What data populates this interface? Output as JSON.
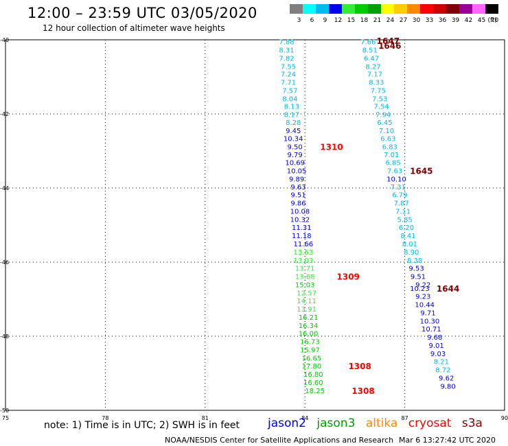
{
  "header": {
    "title": "12:00 – 23:59 UTC 03/05/2020",
    "subtitle": "12 hour collection of altimeter wave heights"
  },
  "colorbar": {
    "unit_label": "(ft)",
    "bins": [
      {
        "label": "3",
        "color": "#7f7f7f"
      },
      {
        "label": "6",
        "color": "#00ffff"
      },
      {
        "label": "9",
        "color": "#00bbee"
      },
      {
        "label": "12",
        "color": "#0000ee"
      },
      {
        "label": "15",
        "color": "#33ee33"
      },
      {
        "label": "18",
        "color": "#00cc00"
      },
      {
        "label": "21",
        "color": "#00a000"
      },
      {
        "label": "24",
        "color": "#ffff00"
      },
      {
        "label": "27",
        "color": "#ffcc00"
      },
      {
        "label": "30",
        "color": "#ff8800"
      },
      {
        "label": "33",
        "color": "#ff0000"
      },
      {
        "label": "36",
        "color": "#cc0000"
      },
      {
        "label": "39",
        "color": "#800000"
      },
      {
        "label": "42",
        "color": "#990099"
      },
      {
        "label": "45",
        "color": "#ff66ff"
      },
      {
        "label": "70",
        "color": "#000000"
      }
    ]
  },
  "map": {
    "lon_range": [
      75,
      90
    ],
    "lat_range": [
      -50,
      -40
    ],
    "lon_ticks": [
      {
        "value": 75,
        "label": "75"
      },
      {
        "value": 78,
        "label": "78"
      },
      {
        "value": 81,
        "label": "81"
      },
      {
        "value": 84,
        "label": "84"
      },
      {
        "value": 87,
        "label": "87"
      },
      {
        "value": 90,
        "label": "90"
      }
    ],
    "lat_ticks": [
      {
        "value": -40,
        "label": "-40"
      },
      {
        "value": -42,
        "label": "-42"
      },
      {
        "value": -44,
        "label": "-44"
      },
      {
        "value": -46,
        "label": "-46"
      },
      {
        "value": -48,
        "label": "-48"
      },
      {
        "value": -50,
        "label": "-50"
      }
    ],
    "tracks": [
      {
        "points": [
          {
            "lon": 83.45,
            "lat": -40.05,
            "text": "7.88",
            "color": "#00bbee"
          },
          {
            "lon": 83.45,
            "lat": -40.27,
            "text": "8.31",
            "color": "#00bbee"
          },
          {
            "lon": 83.45,
            "lat": -40.49,
            "text": "7.82",
            "color": "#00bbee"
          },
          {
            "lon": 83.5,
            "lat": -40.71,
            "text": "7.55",
            "color": "#00bbee"
          },
          {
            "lon": 83.5,
            "lat": -40.92,
            "text": "7.24",
            "color": "#00bbee"
          },
          {
            "lon": 83.5,
            "lat": -41.14,
            "text": "7.71",
            "color": "#00bbee"
          },
          {
            "lon": 83.55,
            "lat": -41.36,
            "text": "7.57",
            "color": "#00bbee"
          },
          {
            "lon": 83.55,
            "lat": -41.58,
            "text": "8.04",
            "color": "#00bbee"
          },
          {
            "lon": 83.6,
            "lat": -41.79,
            "text": "8.13",
            "color": "#00bbee"
          },
          {
            "lon": 83.6,
            "lat": -42.01,
            "text": "8.17",
            "color": "#00bbee"
          },
          {
            "lon": 83.65,
            "lat": -42.22,
            "text": "8.28",
            "color": "#00bbee"
          },
          {
            "lon": 83.65,
            "lat": -42.44,
            "text": "9.45",
            "color": "#0000ee"
          },
          {
            "lon": 83.65,
            "lat": -42.66,
            "text": "10.34",
            "color": "#0000ee"
          },
          {
            "lon": 83.7,
            "lat": -42.88,
            "text": "9.50",
            "color": "#0000ee"
          },
          {
            "lon": 83.7,
            "lat": -43.09,
            "text": "9.79",
            "color": "#0000ee"
          },
          {
            "lon": 83.7,
            "lat": -43.31,
            "text": "10.69",
            "color": "#0000ee"
          },
          {
            "lon": 83.75,
            "lat": -43.53,
            "text": "10.05",
            "color": "#0000ee"
          },
          {
            "lon": 83.75,
            "lat": -43.75,
            "text": "9.89",
            "color": "#0000ee"
          },
          {
            "lon": 83.8,
            "lat": -43.96,
            "text": "9.63",
            "color": "#0000ee"
          },
          {
            "lon": 83.8,
            "lat": -44.18,
            "text": "9.51",
            "color": "#0000ee"
          },
          {
            "lon": 83.8,
            "lat": -44.4,
            "text": "9.86",
            "color": "#0000ee"
          },
          {
            "lon": 83.85,
            "lat": -44.62,
            "text": "10.08",
            "color": "#0000ee"
          },
          {
            "lon": 83.85,
            "lat": -44.84,
            "text": "10.32",
            "color": "#0000ee"
          },
          {
            "lon": 83.9,
            "lat": -45.06,
            "text": "11.31",
            "color": "#0000ee"
          },
          {
            "lon": 83.9,
            "lat": -45.28,
            "text": "11.18",
            "color": "#0000ee"
          },
          {
            "lon": 83.95,
            "lat": -45.5,
            "text": "11.66",
            "color": "#0000ee"
          },
          {
            "lon": 83.95,
            "lat": -45.72,
            "text": "13.63",
            "color": "#33ee33"
          },
          {
            "lon": 83.95,
            "lat": -45.94,
            "text": "13.03",
            "color": "#33ee33"
          },
          {
            "lon": 84.0,
            "lat": -46.16,
            "text": "13.71",
            "color": "#33ee33"
          },
          {
            "lon": 84.0,
            "lat": -46.38,
            "text": "13.68",
            "color": "#33ee33"
          },
          {
            "lon": 84.0,
            "lat": -46.6,
            "text": "15.03",
            "color": "#00cc00"
          },
          {
            "lon": 84.05,
            "lat": -46.82,
            "text": "12.57",
            "color": "#33ee33"
          },
          {
            "lon": 84.05,
            "lat": -47.04,
            "text": "14.11",
            "color": "#33ee33"
          },
          {
            "lon": 84.05,
            "lat": -47.26,
            "text": "13.91",
            "color": "#33ee33"
          },
          {
            "lon": 84.1,
            "lat": -47.48,
            "text": "16.21",
            "color": "#00cc00"
          },
          {
            "lon": 84.1,
            "lat": -47.7,
            "text": "16.34",
            "color": "#00cc00"
          },
          {
            "lon": 84.1,
            "lat": -47.92,
            "text": "16.00",
            "color": "#00cc00"
          },
          {
            "lon": 84.15,
            "lat": -48.14,
            "text": "16.73",
            "color": "#00cc00"
          },
          {
            "lon": 84.15,
            "lat": -48.36,
            "text": "15.97",
            "color": "#00cc00"
          },
          {
            "lon": 84.2,
            "lat": -48.58,
            "text": "16.65",
            "color": "#00cc00"
          },
          {
            "lon": 84.2,
            "lat": -48.8,
            "text": "17.80",
            "color": "#00cc00"
          },
          {
            "lon": 84.25,
            "lat": -49.02,
            "text": "16.80",
            "color": "#00cc00"
          },
          {
            "lon": 84.25,
            "lat": -49.24,
            "text": "16.60",
            "color": "#00cc00"
          },
          {
            "lon": 84.3,
            "lat": -49.46,
            "text": "18.25",
            "color": "#00cc00"
          }
        ]
      },
      {
        "points": [
          {
            "lon": 85.9,
            "lat": -40.05,
            "text": "7.66",
            "color": "#00bbee"
          },
          {
            "lon": 85.95,
            "lat": -40.27,
            "text": "8.51",
            "color": "#00bbee"
          },
          {
            "lon": 86.0,
            "lat": -40.49,
            "text": "6.47",
            "color": "#00bbee"
          },
          {
            "lon": 86.05,
            "lat": -40.71,
            "text": "8.27",
            "color": "#00bbee"
          },
          {
            "lon": 86.1,
            "lat": -40.92,
            "text": "7.17",
            "color": "#00bbee"
          },
          {
            "lon": 86.15,
            "lat": -41.14,
            "text": "8.33",
            "color": "#00bbee"
          },
          {
            "lon": 86.2,
            "lat": -41.36,
            "text": "7.75",
            "color": "#00bbee"
          },
          {
            "lon": 86.25,
            "lat": -41.58,
            "text": "7.53",
            "color": "#00bbee"
          },
          {
            "lon": 86.3,
            "lat": -41.79,
            "text": "7.54",
            "color": "#00bbee"
          },
          {
            "lon": 86.35,
            "lat": -42.01,
            "text": "7.94",
            "color": "#00bbee"
          },
          {
            "lon": 86.4,
            "lat": -42.22,
            "text": "6.45",
            "color": "#00bbee"
          },
          {
            "lon": 86.45,
            "lat": -42.44,
            "text": "7.10",
            "color": "#00bbee"
          },
          {
            "lon": 86.5,
            "lat": -42.66,
            "text": "6.63",
            "color": "#00bbee"
          },
          {
            "lon": 86.55,
            "lat": -42.88,
            "text": "6.83",
            "color": "#00bbee"
          },
          {
            "lon": 86.6,
            "lat": -43.09,
            "text": "7.01",
            "color": "#00bbee"
          },
          {
            "lon": 86.65,
            "lat": -43.31,
            "text": "6.85",
            "color": "#00bbee"
          },
          {
            "lon": 86.7,
            "lat": -43.53,
            "text": "7.63",
            "color": "#00bbee"
          },
          {
            "lon": 86.75,
            "lat": -43.75,
            "text": "10.10",
            "color": "#0000ee"
          },
          {
            "lon": 86.8,
            "lat": -43.96,
            "text": "7.31",
            "color": "#00bbee"
          },
          {
            "lon": 86.85,
            "lat": -44.18,
            "text": "6.79",
            "color": "#00bbee"
          },
          {
            "lon": 86.9,
            "lat": -44.4,
            "text": "7.87",
            "color": "#00bbee"
          },
          {
            "lon": 86.95,
            "lat": -44.62,
            "text": "7.11",
            "color": "#00bbee"
          },
          {
            "lon": 87.0,
            "lat": -44.84,
            "text": "5.85",
            "color": "#00bbee"
          },
          {
            "lon": 87.05,
            "lat": -45.06,
            "text": "6.20",
            "color": "#00bbee"
          },
          {
            "lon": 87.1,
            "lat": -45.28,
            "text": "8.41",
            "color": "#00bbee"
          },
          {
            "lon": 87.15,
            "lat": -45.5,
            "text": "8.01",
            "color": "#00bbee"
          },
          {
            "lon": 87.2,
            "lat": -45.72,
            "text": "8.90",
            "color": "#00bbee"
          },
          {
            "lon": 87.3,
            "lat": -45.94,
            "text": "8.38",
            "color": "#00bbee"
          },
          {
            "lon": 87.35,
            "lat": -46.16,
            "text": "9.53",
            "color": "#0000ee"
          },
          {
            "lon": 87.4,
            "lat": -46.38,
            "text": "9.51",
            "color": "#0000ee"
          },
          {
            "lon": 87.55,
            "lat": -46.6,
            "text": "9.22",
            "color": "#0000ee"
          },
          {
            "lon": 87.45,
            "lat": -46.7,
            "text": "10.23",
            "color": "#0000ee"
          },
          {
            "lon": 87.55,
            "lat": -46.92,
            "text": "9.23",
            "color": "#0000ee"
          },
          {
            "lon": 87.6,
            "lat": -47.14,
            "text": "10.44",
            "color": "#0000ee"
          },
          {
            "lon": 87.7,
            "lat": -47.36,
            "text": "9.71",
            "color": "#0000ee"
          },
          {
            "lon": 87.75,
            "lat": -47.58,
            "text": "10.30",
            "color": "#0000ee"
          },
          {
            "lon": 87.8,
            "lat": -47.8,
            "text": "10.71",
            "color": "#0000ee"
          },
          {
            "lon": 87.9,
            "lat": -48.02,
            "text": "9.68",
            "color": "#0000ee"
          },
          {
            "lon": 87.95,
            "lat": -48.24,
            "text": "9.01",
            "color": "#0000ee"
          },
          {
            "lon": 88.0,
            "lat": -48.46,
            "text": "9.03",
            "color": "#0000ee"
          },
          {
            "lon": 88.1,
            "lat": -48.68,
            "text": "8.21",
            "color": "#00bbee"
          },
          {
            "lon": 88.15,
            "lat": -48.9,
            "text": "8.72",
            "color": "#00bbee"
          },
          {
            "lon": 88.25,
            "lat": -49.12,
            "text": "9.62",
            "color": "#0000ee"
          },
          {
            "lon": 88.3,
            "lat": -49.34,
            "text": "9.80",
            "color": "#0000ee"
          }
        ]
      }
    ],
    "time_labels": [
      {
        "lon": 84.8,
        "lat": -42.88,
        "text": "1310",
        "color": "#ff0000"
      },
      {
        "lon": 85.3,
        "lat": -46.38,
        "text": "1309",
        "color": "#ff0000"
      },
      {
        "lon": 85.65,
        "lat": -48.8,
        "text": "1308",
        "color": "#ff0000"
      },
      {
        "lon": 85.75,
        "lat": -49.46,
        "text": "1308",
        "color": "#ff0000"
      },
      {
        "lon": 86.5,
        "lat": -40.02,
        "text": "1647",
        "color": "#800000"
      },
      {
        "lon": 86.55,
        "lat": -40.15,
        "text": "1646",
        "color": "#800000"
      },
      {
        "lon": 87.5,
        "lat": -43.53,
        "text": "1645",
        "color": "#800000"
      },
      {
        "lon": 88.3,
        "lat": -46.7,
        "text": "1644",
        "color": "#800000"
      }
    ]
  },
  "note": {
    "text": "note:  1) Time is in UTC;  2) SWH is in feet"
  },
  "satellites": [
    {
      "name": "jason2",
      "color": "#0000ee"
    },
    {
      "name": "jason3",
      "color": "#00a000"
    },
    {
      "name": "altika",
      "color": "#ff8800"
    },
    {
      "name": "cryosat",
      "color": "#ff0000"
    },
    {
      "name": "s3a",
      "color": "#800000"
    }
  ],
  "footer": {
    "center": "NOAA/NESDIS Center for Satellite Applications and Research",
    "right": "Mar  6 13:27:42 UTC 2020"
  }
}
